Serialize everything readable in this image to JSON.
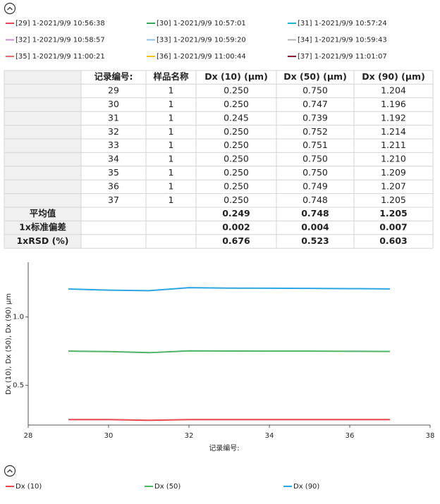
{
  "legend_top": [
    {
      "label": "[29] 1-2021/9/9 10:56:38",
      "color": "#e8475a"
    },
    {
      "label": "[30] 1-2021/9/9 10:57:01",
      "color": "#3aa85c"
    },
    {
      "label": "[31] 1-2021/9/9 10:57:24",
      "color": "#1fb3c8"
    },
    {
      "label": "[32] 1-2021/9/9 10:58:57",
      "color": "#c592c5"
    },
    {
      "label": "[33] 1-2021/9/9 10:59:20",
      "color": "#92c0e4"
    },
    {
      "label": "[34] 1-2021/9/9 10:59:43",
      "color": "#b4b4b4"
    },
    {
      "label": "[35] 1-2021/9/9 11:00:21",
      "color": "#e47272"
    },
    {
      "label": "[36] 1-2021/9/9 11:00:44",
      "color": "#f2c21c"
    },
    {
      "label": "[37] 1-2021/9/9 11:01:07",
      "color": "#8c1a2e"
    }
  ],
  "table": {
    "header": [
      "记录编号:",
      "样品名称",
      "Dx (10) (μm)",
      "Dx (50) (μm)",
      "Dx (90) (μm)"
    ],
    "rows": [
      [
        "29",
        "1",
        "0.250",
        "0.750",
        "1.204"
      ],
      [
        "30",
        "1",
        "0.250",
        "0.747",
        "1.196"
      ],
      [
        "31",
        "1",
        "0.245",
        "0.739",
        "1.192"
      ],
      [
        "32",
        "1",
        "0.250",
        "0.752",
        "1.214"
      ],
      [
        "33",
        "1",
        "0.250",
        "0.751",
        "1.211"
      ],
      [
        "34",
        "1",
        "0.250",
        "0.750",
        "1.210"
      ],
      [
        "35",
        "1",
        "0.250",
        "0.750",
        "1.209"
      ],
      [
        "36",
        "1",
        "0.250",
        "0.749",
        "1.207"
      ],
      [
        "37",
        "1",
        "0.250",
        "0.748",
        "1.205"
      ]
    ],
    "summary": [
      {
        "label": "平均值",
        "values": [
          "0.249",
          "0.748",
          "1.205"
        ]
      },
      {
        "label": "1x标准偏差",
        "values": [
          "0.002",
          "0.004",
          "0.007"
        ]
      },
      {
        "label": "1xRSD (%)",
        "values": [
          "0.676",
          "0.523",
          "0.603"
        ]
      }
    ]
  },
  "chart_data": {
    "type": "line",
    "x_label": "记录编号:",
    "y_label": "Dx (10), Dx (50), Dx (90) μm",
    "x": [
      29,
      30,
      31,
      32,
      33,
      34,
      35,
      36,
      37
    ],
    "series": [
      {
        "name": "Dx (10)",
        "color": "#e8474f",
        "values": [
          0.25,
          0.25,
          0.245,
          0.25,
          0.25,
          0.25,
          0.25,
          0.25,
          0.25
        ]
      },
      {
        "name": "Dx (50)",
        "color": "#4cb464",
        "values": [
          0.75,
          0.747,
          0.739,
          0.752,
          0.751,
          0.75,
          0.75,
          0.749,
          0.748
        ]
      },
      {
        "name": "Dx (90)",
        "color": "#2aa6e2",
        "values": [
          1.204,
          1.196,
          1.192,
          1.214,
          1.211,
          1.21,
          1.209,
          1.207,
          1.205
        ]
      }
    ],
    "xlim": [
      28,
      38
    ],
    "xticks": [
      28,
      30,
      32,
      34,
      36,
      38
    ],
    "ylim": [
      0.21,
      1.4
    ],
    "yticks": [
      0.5,
      {
        "value": 1,
        "label": "1.0"
      }
    ]
  }
}
